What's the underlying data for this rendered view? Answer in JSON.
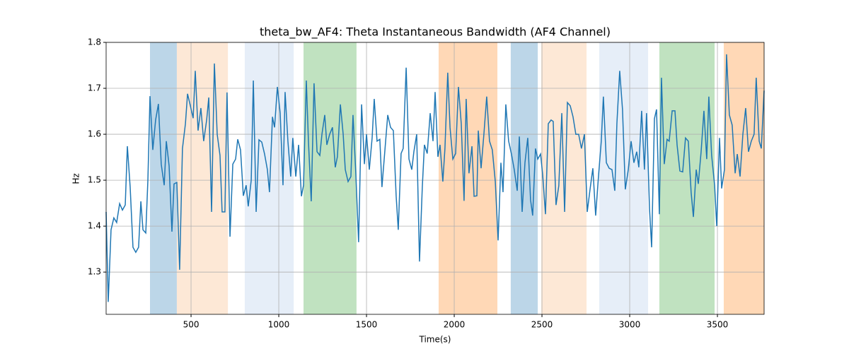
{
  "chart_data": {
    "type": "line",
    "title": "theta_bw_AF4: Theta Instantaneous Bandwidth (AF4 Channel)",
    "x_label": "Time(s)",
    "y_label": "Hz",
    "xlim": [
      16,
      3766
    ],
    "ylim": [
      1.208,
      1.8
    ],
    "xticks": [
      500,
      1000,
      1500,
      2000,
      2500,
      3000,
      3500
    ],
    "yticks": [
      1.3,
      1.4,
      1.5,
      1.6,
      1.7,
      1.8
    ],
    "grid": true,
    "spans": [
      {
        "start": 266,
        "end": 419,
        "color": "#bcd6e8"
      },
      {
        "start": 419,
        "end": 710,
        "color": "#fde8d6"
      },
      {
        "start": 806,
        "end": 1085,
        "color": "#e6eef8"
      },
      {
        "start": 1141,
        "end": 1443,
        "color": "#c0e2c0"
      },
      {
        "start": 1911,
        "end": 2246,
        "color": "#ffd8b6"
      },
      {
        "start": 2322,
        "end": 2476,
        "color": "#bcd6e8"
      },
      {
        "start": 2496,
        "end": 2754,
        "color": "#fde8d6"
      },
      {
        "start": 2826,
        "end": 3105,
        "color": "#e6eef8"
      },
      {
        "start": 3169,
        "end": 3484,
        "color": "#c0e2c0"
      },
      {
        "start": 3536,
        "end": 3766,
        "color": "#ffd8b6"
      }
    ],
    "x": [
      16,
      28,
      44,
      60,
      76,
      93,
      109,
      125,
      137,
      153,
      169,
      185,
      201,
      214,
      226,
      242,
      254,
      266,
      282,
      298,
      314,
      330,
      347,
      359,
      375,
      391,
      403,
      419,
      435,
      451,
      468,
      480,
      496,
      512,
      524,
      540,
      556,
      572,
      589,
      601,
      617,
      633,
      649,
      665,
      677,
      693,
      705,
      722,
      738,
      754,
      766,
      782,
      798,
      814,
      826,
      843,
      855,
      871,
      887,
      903,
      919,
      935,
      947,
      964,
      976,
      992,
      1008,
      1024,
      1036,
      1052,
      1068,
      1080,
      1097,
      1113,
      1129,
      1141,
      1157,
      1169,
      1185,
      1201,
      1218,
      1234,
      1246,
      1262,
      1274,
      1290,
      1306,
      1322,
      1334,
      1351,
      1367,
      1379,
      1395,
      1411,
      1423,
      1439,
      1455,
      1472,
      1488,
      1500,
      1516,
      1532,
      1544,
      1560,
      1576,
      1588,
      1605,
      1621,
      1637,
      1653,
      1669,
      1681,
      1697,
      1709,
      1726,
      1742,
      1758,
      1770,
      1786,
      1802,
      1818,
      1830,
      1846,
      1863,
      1879,
      1891,
      1907,
      1919,
      1935,
      1947,
      1963,
      1976,
      1992,
      2008,
      2024,
      2040,
      2056,
      2068,
      2084,
      2101,
      2113,
      2129,
      2137,
      2153,
      2169,
      2185,
      2201,
      2217,
      2234,
      2250,
      2266,
      2278,
      2294,
      2310,
      2326,
      2342,
      2359,
      2371,
      2387,
      2403,
      2419,
      2435,
      2447,
      2463,
      2476,
      2492,
      2504,
      2520,
      2536,
      2552,
      2564,
      2580,
      2596,
      2613,
      2629,
      2645,
      2661,
      2677,
      2693,
      2709,
      2725,
      2742,
      2758,
      2774,
      2790,
      2806,
      2822,
      2838,
      2850,
      2867,
      2883,
      2899,
      2915,
      2927,
      2943,
      2959,
      2975,
      2992,
      3008,
      3024,
      3040,
      3052,
      3068,
      3084,
      3096,
      3113,
      3125,
      3141,
      3153,
      3169,
      3181,
      3197,
      3213,
      3225,
      3242,
      3258,
      3270,
      3286,
      3302,
      3318,
      3334,
      3350,
      3363,
      3379,
      3391,
      3407,
      3423,
      3439,
      3451,
      3467,
      3484,
      3496,
      3512,
      3524,
      3540,
      3552,
      3568,
      3584,
      3601,
      3613,
      3629,
      3645,
      3661,
      3677,
      3693,
      3709,
      3721,
      3738,
      3750,
      3766
    ],
    "series": [
      {
        "color": "#1f77b4",
        "values": [
          1.431,
          1.235,
          1.392,
          1.418,
          1.408,
          1.449,
          1.435,
          1.446,
          1.574,
          1.485,
          1.354,
          1.343,
          1.354,
          1.454,
          1.392,
          1.385,
          1.5,
          1.683,
          1.566,
          1.631,
          1.666,
          1.535,
          1.489,
          1.585,
          1.531,
          1.388,
          1.492,
          1.495,
          1.305,
          1.569,
          1.623,
          1.688,
          1.662,
          1.635,
          1.738,
          1.608,
          1.657,
          1.585,
          1.631,
          1.68,
          1.431,
          1.754,
          1.6,
          1.554,
          1.431,
          1.431,
          1.691,
          1.377,
          1.535,
          1.546,
          1.589,
          1.566,
          1.466,
          1.489,
          1.443,
          1.5,
          1.717,
          1.431,
          1.588,
          1.583,
          1.557,
          1.523,
          1.474,
          1.638,
          1.615,
          1.703,
          1.646,
          1.489,
          1.692,
          1.585,
          1.508,
          1.592,
          1.508,
          1.577,
          1.465,
          1.489,
          1.717,
          1.585,
          1.454,
          1.711,
          1.562,
          1.554,
          1.6,
          1.642,
          1.577,
          1.6,
          1.615,
          1.528,
          1.551,
          1.665,
          1.6,
          1.523,
          1.497,
          1.508,
          1.642,
          1.515,
          1.365,
          1.665,
          1.535,
          1.6,
          1.523,
          1.592,
          1.677,
          1.585,
          1.589,
          1.485,
          1.566,
          1.642,
          1.615,
          1.608,
          1.465,
          1.392,
          1.558,
          1.569,
          1.745,
          1.546,
          1.523,
          1.562,
          1.6,
          1.323,
          1.485,
          1.577,
          1.558,
          1.646,
          1.585,
          1.692,
          1.551,
          1.577,
          1.497,
          1.569,
          1.734,
          1.615,
          1.546,
          1.558,
          1.703,
          1.623,
          1.455,
          1.677,
          1.515,
          1.574,
          1.465,
          1.466,
          1.608,
          1.526,
          1.6,
          1.682,
          1.585,
          1.566,
          1.497,
          1.369,
          1.538,
          1.474,
          1.665,
          1.585,
          1.557,
          1.523,
          1.477,
          1.595,
          1.431,
          1.538,
          1.592,
          1.457,
          1.423,
          1.569,
          1.546,
          1.557,
          1.512,
          1.426,
          1.623,
          1.631,
          1.628,
          1.446,
          1.488,
          1.646,
          1.431,
          1.669,
          1.662,
          1.638,
          1.6,
          1.6,
          1.569,
          1.6,
          1.431,
          1.48,
          1.526,
          1.423,
          1.508,
          1.585,
          1.682,
          1.538,
          1.526,
          1.523,
          1.477,
          1.623,
          1.738,
          1.654,
          1.48,
          1.523,
          1.585,
          1.538,
          1.562,
          1.528,
          1.651,
          1.523,
          1.646,
          1.438,
          1.354,
          1.634,
          1.654,
          1.426,
          1.723,
          1.535,
          1.589,
          1.585,
          1.651,
          1.651,
          1.577,
          1.52,
          1.518,
          1.592,
          1.585,
          1.474,
          1.42,
          1.523,
          1.492,
          1.562,
          1.651,
          1.546,
          1.682,
          1.554,
          1.489,
          1.4,
          1.592,
          1.482,
          1.523,
          1.774,
          1.642,
          1.62,
          1.515,
          1.557,
          1.508,
          1.6,
          1.657,
          1.562,
          1.585,
          1.6,
          1.723,
          1.585,
          1.569,
          1.695
        ]
      }
    ]
  }
}
